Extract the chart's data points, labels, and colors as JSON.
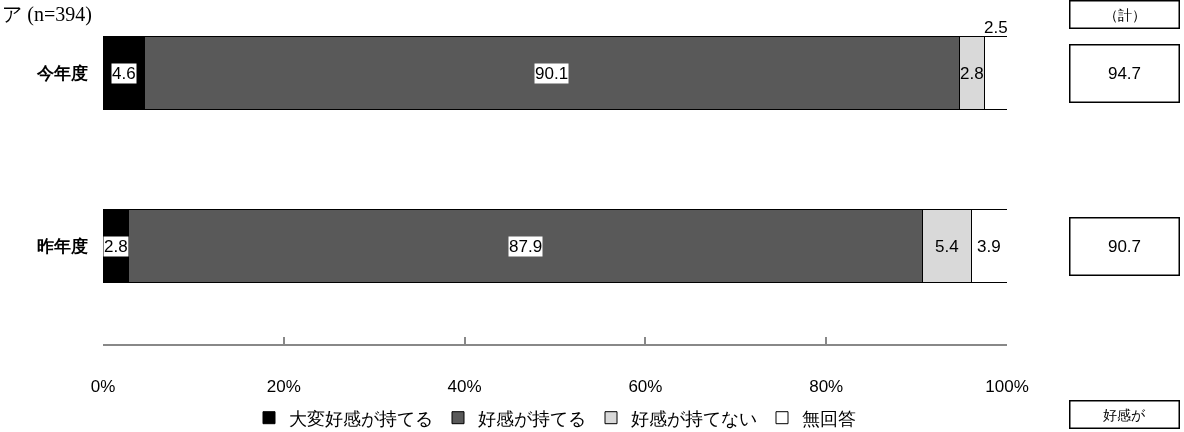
{
  "chart_data": {
    "type": "bar",
    "orientation": "horizontal",
    "stacked": true,
    "title": "ア (n=394)",
    "categories": [
      "今年度",
      "昨年度"
    ],
    "series": [
      {
        "name": "大変好感が持てる",
        "color": "#000000",
        "values": [
          4.6,
          2.8
        ]
      },
      {
        "name": "好感が持てる",
        "color": "#595959",
        "values": [
          90.1,
          87.9
        ]
      },
      {
        "name": "好感が持てない",
        "color": "#d9d9d9",
        "values": [
          2.8,
          5.4
        ]
      },
      {
        "name": "無回答",
        "color": "#ffffff",
        "values": [
          2.5,
          3.9
        ]
      }
    ],
    "xlim": [
      0,
      100
    ],
    "xticks": [
      {
        "value": 0,
        "label": "0%"
      },
      {
        "value": 20,
        "label": "20%"
      },
      {
        "value": 40,
        "label": "40%"
      },
      {
        "value": 60,
        "label": "60%"
      },
      {
        "value": 80,
        "label": "80%"
      },
      {
        "value": 100,
        "label": "100%"
      }
    ],
    "data_labels": true,
    "annotations": [
      "（計）",
      "94.7",
      "90.7",
      "好感が"
    ],
    "legend": "bottom"
  }
}
